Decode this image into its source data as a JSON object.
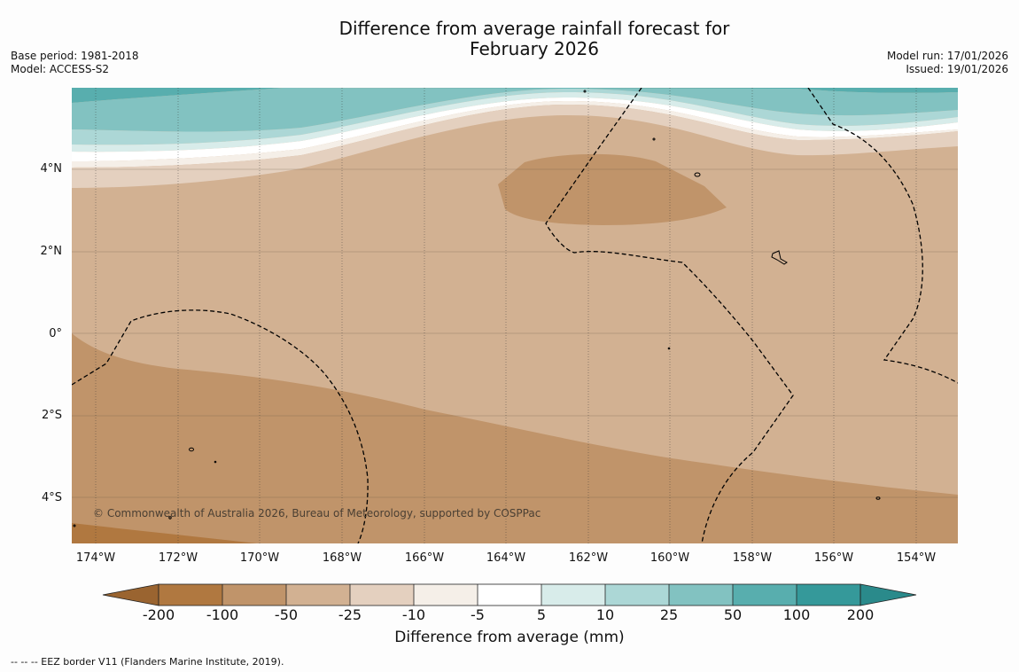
{
  "title_line1": "Difference from average rainfall forecast for",
  "title_line2": "February 2026",
  "base_period": "Base period: 1981-2018",
  "model": "Model: ACCESS-S2",
  "model_run": "Model run: 17/01/2026",
  "issued": "Issued: 19/01/2026",
  "lat_labels": [
    "4°N",
    "2°N",
    "0°",
    "2°S",
    "4°S"
  ],
  "lon_labels": [
    "174°W",
    "172°W",
    "170°W",
    "168°W",
    "166°W",
    "164°W",
    "162°W",
    "160°W",
    "158°W",
    "156°W",
    "154°W"
  ],
  "copyright": "© Commonwealth of Australia 2026, Bureau of Meteorology, supported by COSPPac",
  "colorbar": {
    "ticks": [
      "-200",
      "-100",
      "-50",
      "-25",
      "-10",
      "-5",
      "5",
      "10",
      "25",
      "50",
      "100",
      "200"
    ],
    "colors": [
      "#b07840",
      "#c0946a",
      "#d2b192",
      "#e4d0bf",
      "#f5efe8",
      "#ffffff",
      "#d8ecea",
      "#acd7d6",
      "#82c2c1",
      "#58aeae",
      "#35999a"
    ],
    "under_color": "#9a6430",
    "over_color": "#2a8a8b",
    "title": "Difference from average (mm)"
  },
  "footnote": "--  --  -- EEZ border V11 (Flanders Marine Institute, 2019)."
}
